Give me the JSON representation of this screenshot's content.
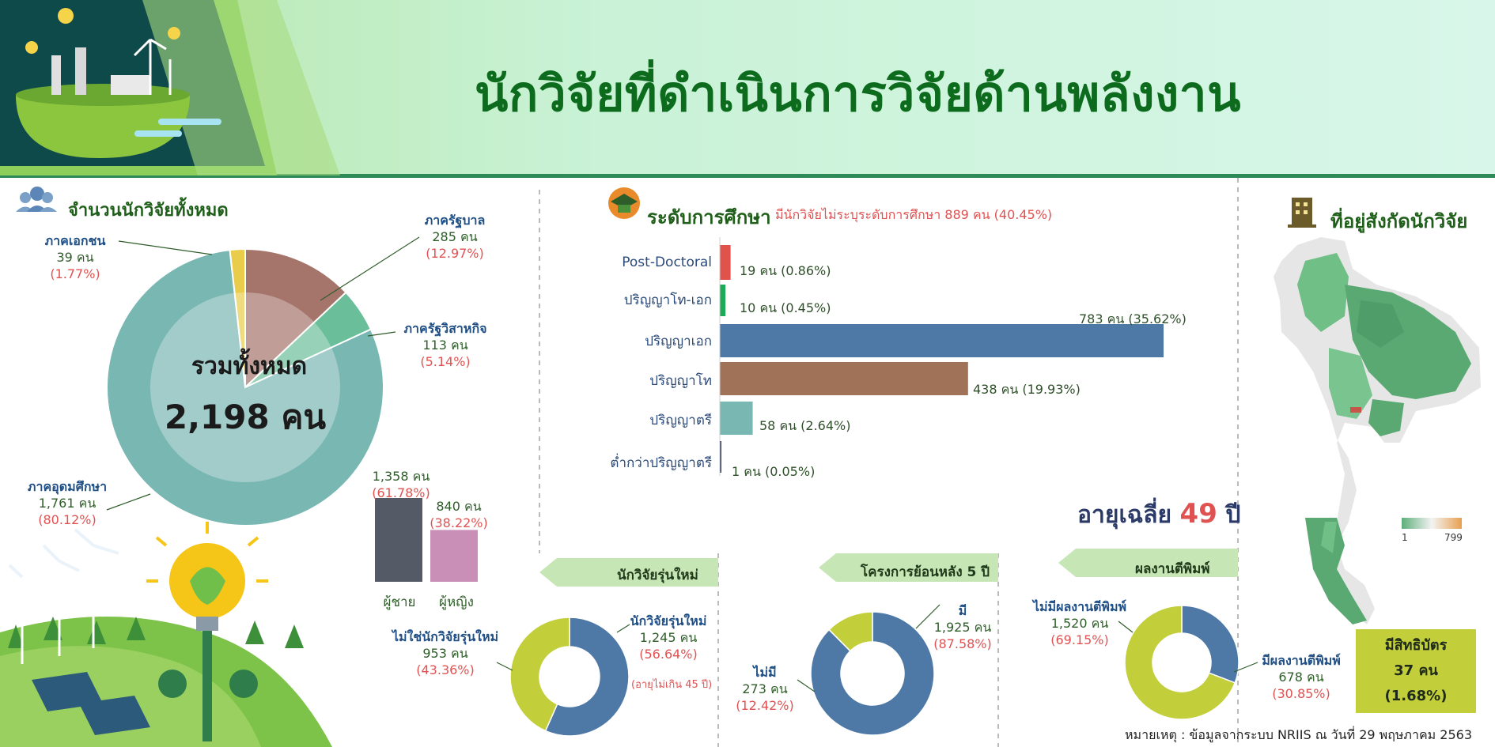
{
  "header": {
    "title": "นักวิจัยที่ดำเนินการวิจัยด้านพลังงาน"
  },
  "colors": {
    "header_bg": "#c8f0d8",
    "title_green": "#0d6b1d",
    "teal": "#79b7b3",
    "brown": "#a5746a",
    "green": "#6abf9a",
    "yellow": "#e8cc4a",
    "blue": "#4e79a7",
    "lime": "#c2cf3a",
    "red": "#e05252",
    "male": "#555b66",
    "female": "#c98fb6"
  },
  "total_section": {
    "title": "จำนวนนักวิจัยทั้งหมด",
    "center_label": "รวมทั้งหมด",
    "center_value": "2,198 คน"
  },
  "gender": {
    "male_label": "ผู้ชาย",
    "female_label": "ผู้หญิง",
    "male_value": "1,358 คน",
    "male_pct": "(61.78%)",
    "female_value": "840 คน",
    "female_pct": "(38.22%)"
  },
  "education": {
    "title": "ระดับการศึกษา",
    "note": "มีนักวิจัยไม่ระบุระดับการศึกษา 889 คน (40.45%)"
  },
  "avg_age": {
    "label": "อายุเฉลี่ย",
    "value": "49",
    "unit": "ปี"
  },
  "affiliation": {
    "title": "ที่อยู่สังกัดนักวิจัย",
    "legend_min": "1",
    "legend_max": "799"
  },
  "ribbons": {
    "new_researchers": "นักวิจัยรุ่นใหม่",
    "projects": "โครงการย้อนหลัง 5 ปี",
    "publications": "ผลงานตีพิมพ์"
  },
  "new_researcher_note": "(อายุไม่เกิน 45 ปี)",
  "patent": {
    "label": "มีสิทธิบัตร",
    "value": "37 คน",
    "pct": "(1.68%)"
  },
  "footnote": "หมายเหตุ : ข้อมูลจากระบบ NRIIS ณ วันที่ 29 พฤษภาคม 2563",
  "chart_data": [
    {
      "type": "pie",
      "title": "จำนวนนักวิจัยทั้งหมด",
      "categories": [
        "ภาครัฐบาล",
        "ภาครัฐวิสาหกิจ",
        "ภาคอุดมศึกษา",
        "ภาคเอกชน"
      ],
      "values": [
        285,
        113,
        1761,
        39
      ],
      "value_labels": [
        "285 คน",
        "113 คน",
        "1,761 คน",
        "39 คน"
      ],
      "percent_labels": [
        "(12.97%)",
        "(5.14%)",
        "(80.12%)",
        "(1.77%)"
      ]
    },
    {
      "type": "bar",
      "title": "",
      "categories": [
        "ผู้ชาย",
        "ผู้หญิง"
      ],
      "values": [
        1358,
        840
      ]
    },
    {
      "type": "bar",
      "orientation": "horizontal",
      "title": "ระดับการศึกษา",
      "categories": [
        "Post-Doctoral",
        "ปริญญาโท-เอก",
        "ปริญญาเอก",
        "ปริญญาโท",
        "ปริญญาตรี",
        "ต่ำกว่าปริญญาตรี"
      ],
      "values": [
        19,
        10,
        783,
        438,
        58,
        1
      ],
      "value_labels": [
        "19 คน (0.86%)",
        "10 คน (0.45%)",
        "783 คน (35.62%)",
        "438 คน (19.93%)",
        "58 คน (2.64%)",
        "1 คน (0.05%)"
      ]
    },
    {
      "type": "pie",
      "title": "นักวิจัยรุ่นใหม่",
      "categories": [
        "นักวิจัยรุ่นใหม่",
        "ไม่ใช่นักวิจัยรุ่นใหม่"
      ],
      "values": [
        1245,
        953
      ],
      "value_labels": [
        "1,245 คน",
        "953 คน"
      ],
      "percent_labels": [
        "(56.64%)",
        "(43.36%)"
      ]
    },
    {
      "type": "pie",
      "title": "โครงการย้อนหลัง 5 ปี",
      "categories": [
        "มี",
        "ไม่มี"
      ],
      "values": [
        1925,
        273
      ],
      "value_labels": [
        "1,925 คน",
        "273 คน"
      ],
      "percent_labels": [
        "(87.58%)",
        "(12.42%)"
      ]
    },
    {
      "type": "pie",
      "title": "ผลงานตีพิมพ์",
      "categories": [
        "มีผลงานตีพิมพ์",
        "ไม่มีผลงานตีพิมพ์"
      ],
      "values": [
        678,
        1520
      ],
      "value_labels": [
        "678 คน",
        "1,520 คน"
      ],
      "percent_labels": [
        "(30.85%)",
        "(69.15%)"
      ]
    }
  ]
}
